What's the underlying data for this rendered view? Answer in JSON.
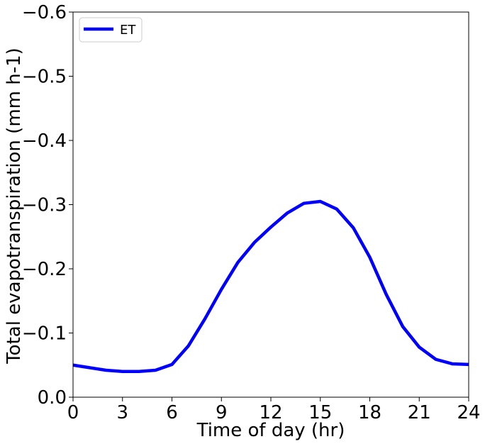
{
  "chart_data": {
    "type": "line",
    "title": "",
    "xlabel": "Time of day (hr)",
    "ylabel": "Total evapotranspiration (mm h-1)",
    "xlim": [
      0,
      24
    ],
    "ylim": [
      0.0,
      -0.6
    ],
    "y_inverted": true,
    "x_ticks": [
      0,
      3,
      6,
      9,
      12,
      15,
      18,
      21,
      24
    ],
    "x_tick_labels": [
      "0",
      "3",
      "6",
      "9",
      "12",
      "15",
      "18",
      "21",
      "24"
    ],
    "y_ticks": [
      0.0,
      -0.1,
      -0.2,
      -0.3,
      -0.4,
      -0.5,
      -0.6
    ],
    "y_tick_labels": [
      "0.0",
      "−0.1",
      "−0.2",
      "−0.3",
      "−0.4",
      "−0.5",
      "−0.6"
    ],
    "grid": false,
    "legend_position": "top-left",
    "series": [
      {
        "name": "ET",
        "color": "#0000ff",
        "x": [
          0,
          1,
          2,
          3,
          4,
          5,
          6,
          7,
          8,
          9,
          10,
          11,
          12,
          13,
          14,
          15,
          16,
          17,
          18,
          19,
          20,
          21,
          22,
          23,
          24
        ],
        "values": [
          -0.05,
          -0.046,
          -0.042,
          -0.04,
          -0.04,
          -0.042,
          -0.051,
          -0.08,
          -0.122,
          -0.168,
          -0.21,
          -0.241,
          -0.265,
          -0.287,
          -0.302,
          -0.305,
          -0.293,
          -0.264,
          -0.218,
          -0.16,
          -0.11,
          -0.078,
          -0.059,
          -0.052,
          -0.051
        ]
      }
    ]
  }
}
